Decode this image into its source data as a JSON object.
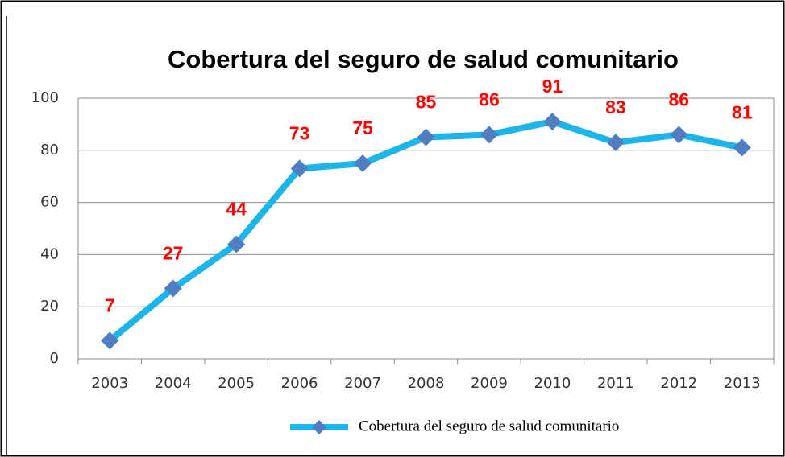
{
  "chart_data": {
    "type": "line",
    "title": "Cobertura del seguro de salud comunitario",
    "categories": [
      "2003",
      "2004",
      "2005",
      "2006",
      "2007",
      "2008",
      "2009",
      "2010",
      "2011",
      "2012",
      "2013"
    ],
    "series": [
      {
        "name": "Cobertura del seguro de salud comunitario",
        "color": "#1db4ea",
        "marker_color": "#4f7fc0",
        "values": [
          7,
          27,
          44,
          73,
          75,
          85,
          86,
          91,
          83,
          86,
          81
        ]
      }
    ],
    "label_color": "#ff0000",
    "ylim": [
      0,
      100
    ],
    "yticks": [
      0,
      20,
      40,
      60,
      80,
      100
    ],
    "grid": true,
    "legend": "bottom"
  }
}
